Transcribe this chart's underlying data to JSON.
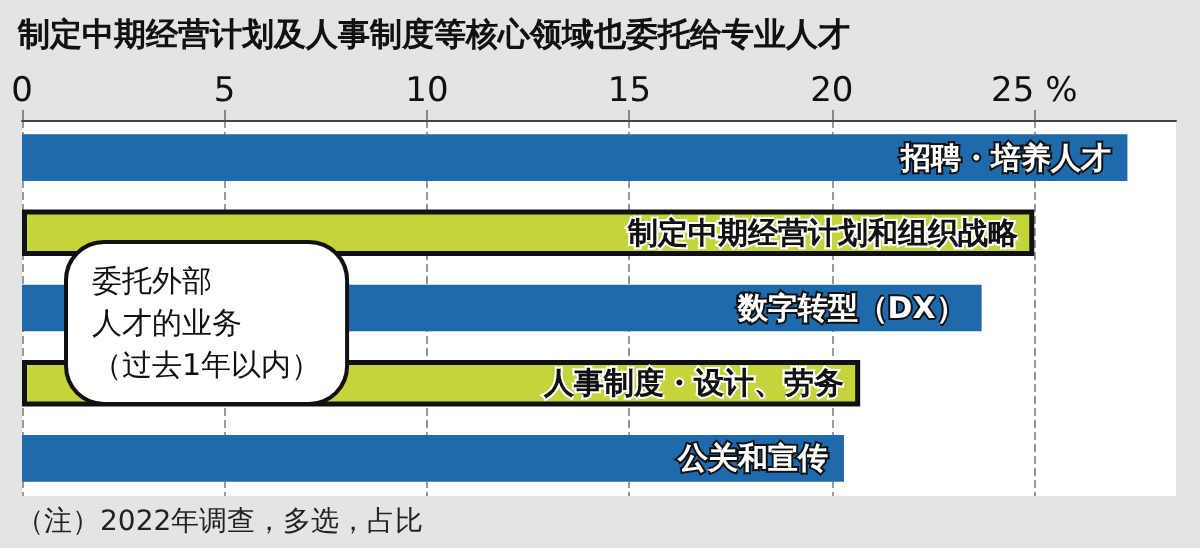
{
  "chart_data": {
    "type": "bar",
    "orientation": "horizontal",
    "title": "制定中期经营计划及人事制度等核心领域也委托给专业人才",
    "categories": [
      "招聘・培养人才",
      "制定中期经营计划和组织战略",
      "数字转型（DX）",
      "人事制度・设计、劳务",
      "公关和宣传"
    ],
    "values": [
      27.3,
      25.0,
      23.7,
      20.7,
      20.3
    ],
    "colors": [
      "#1f6aad",
      "#c5d43a",
      "#1f6aad",
      "#c5d43a",
      "#1f6aad"
    ],
    "xlim": [
      0,
      28.5
    ],
    "xticks": [
      0,
      5,
      10,
      15,
      20,
      {
        "value": 25,
        "label": "25 %"
      }
    ],
    "grid": "x",
    "annotations": [
      "委托外部",
      "人才的业务",
      "（过去1年以内）",
      "（注）2022年调查，多选，占比"
    ]
  }
}
